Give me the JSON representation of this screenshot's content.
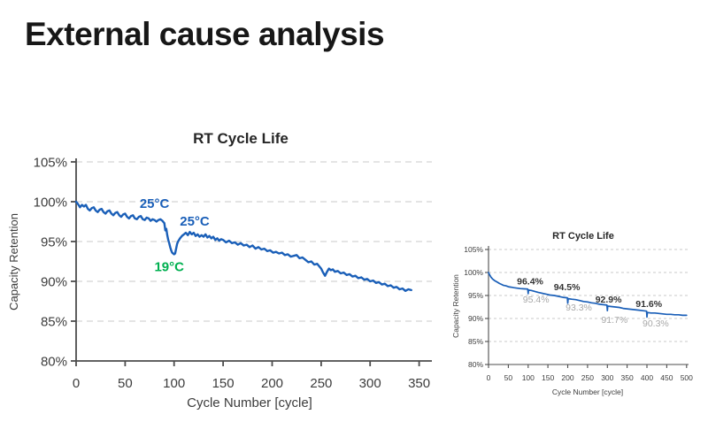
{
  "page": {
    "title": "External cause analysis"
  },
  "colors": {
    "blue": "#1a5fb8",
    "green": "#00b050",
    "dark": "#333333",
    "gray": "#a8a8a8",
    "grid": "#c9c9c9",
    "axis": "#4d4d4d",
    "text": "#3c3c3c",
    "title": "#262626"
  },
  "chart_data": [
    {
      "id": "left",
      "type": "line",
      "title": "RT Cycle Life",
      "xlabel": "Cycle Number [cycle]",
      "ylabel": "Capacity Retention",
      "xlim": [
        0,
        363
      ],
      "ylim": [
        80,
        105
      ],
      "xticks": [
        0,
        50,
        100,
        150,
        200,
        250,
        300,
        350
      ],
      "xtick_labels": [
        "0",
        "50",
        "100",
        "150",
        "200",
        "250",
        "300",
        "350"
      ],
      "yticks": [
        80,
        85,
        90,
        95,
        100,
        105
      ],
      "ytick_labels": [
        "80%",
        "85%",
        "90%",
        "95%",
        "100%",
        "105%"
      ],
      "grid": "dashed-horizontal",
      "legend": "none",
      "series": [
        {
          "name": "capacity-retention",
          "color": "#1a5fb8",
          "points": [
            [
              0,
              100
            ],
            [
              2,
              99.7
            ],
            [
              4,
              99.3
            ],
            [
              6,
              99.6
            ],
            [
              8,
              99.4
            ],
            [
              10,
              99.6
            ],
            [
              12,
              99.1
            ],
            [
              14,
              98.9
            ],
            [
              16,
              99.2
            ],
            [
              18,
              99.3
            ],
            [
              20,
              98.9
            ],
            [
              22,
              98.7
            ],
            [
              24,
              99.0
            ],
            [
              26,
              99.1
            ],
            [
              28,
              98.7
            ],
            [
              30,
              98.5
            ],
            [
              32,
              98.8
            ],
            [
              34,
              98.9
            ],
            [
              36,
              98.5
            ],
            [
              38,
              98.3
            ],
            [
              40,
              98.6
            ],
            [
              42,
              98.7
            ],
            [
              44,
              98.3
            ],
            [
              46,
              98.1
            ],
            [
              48,
              98.4
            ],
            [
              50,
              98.5
            ],
            [
              52,
              98.1
            ],
            [
              54,
              97.9
            ],
            [
              56,
              98.2
            ],
            [
              58,
              98.3
            ],
            [
              60,
              97.9
            ],
            [
              62,
              97.8
            ],
            [
              64,
              98.1
            ],
            [
              66,
              98.2
            ],
            [
              68,
              97.8
            ],
            [
              70,
              97.7
            ],
            [
              72,
              98.0
            ],
            [
              74,
              97.9
            ],
            [
              76,
              97.6
            ],
            [
              78,
              97.8
            ],
            [
              80,
              97.7
            ],
            [
              82,
              97.5
            ],
            [
              84,
              97.7
            ],
            [
              86,
              97.8
            ],
            [
              88,
              97.6
            ],
            [
              90,
              97.3
            ],
            [
              91,
              96.4
            ],
            [
              92,
              96.6
            ],
            [
              93,
              95.8
            ],
            [
              94,
              95.2
            ],
            [
              95,
              94.8
            ],
            [
              96,
              94.3
            ],
            [
              97,
              93.9
            ],
            [
              98,
              93.6
            ],
            [
              100,
              93.4
            ],
            [
              101,
              93.5
            ],
            [
              102,
              94.1
            ],
            [
              103,
              94.7
            ],
            [
              104,
              95.0
            ],
            [
              106,
              95.4
            ],
            [
              108,
              95.7
            ],
            [
              110,
              95.9
            ],
            [
              112,
              96.1
            ],
            [
              114,
              95.8
            ],
            [
              116,
              96.2
            ],
            [
              118,
              95.9
            ],
            [
              120,
              96.1
            ],
            [
              122,
              95.7
            ],
            [
              124,
              95.9
            ],
            [
              126,
              95.6
            ],
            [
              128,
              95.8
            ],
            [
              130,
              95.6
            ],
            [
              132,
              95.9
            ],
            [
              134,
              95.5
            ],
            [
              136,
              95.7
            ],
            [
              138,
              95.4
            ],
            [
              140,
              95.6
            ],
            [
              142,
              95.2
            ],
            [
              144,
              95.4
            ],
            [
              146,
              95.1
            ],
            [
              148,
              95.3
            ],
            [
              150,
              95.2
            ],
            [
              153,
              94.9
            ],
            [
              156,
              95.1
            ],
            [
              159,
              94.8
            ],
            [
              162,
              94.9
            ],
            [
              165,
              94.6
            ],
            [
              168,
              94.8
            ],
            [
              171,
              94.5
            ],
            [
              174,
              94.6
            ],
            [
              177,
              94.3
            ],
            [
              180,
              94.5
            ],
            [
              183,
              94.1
            ],
            [
              186,
              94.3
            ],
            [
              189,
              94.0
            ],
            [
              192,
              94.1
            ],
            [
              195,
              93.8
            ],
            [
              198,
              93.9
            ],
            [
              201,
              93.6
            ],
            [
              204,
              93.7
            ],
            [
              207,
              93.5
            ],
            [
              210,
              93.6
            ],
            [
              213,
              93.3
            ],
            [
              216,
              93.4
            ],
            [
              219,
              93.1
            ],
            [
              222,
              93.2
            ],
            [
              225,
              93.3
            ],
            [
              228,
              92.9
            ],
            [
              231,
              93.0
            ],
            [
              234,
              92.7
            ],
            [
              237,
              92.4
            ],
            [
              240,
              92.5
            ],
            [
              243,
              92.1
            ],
            [
              246,
              92.2
            ],
            [
              248,
              91.9
            ],
            [
              250,
              91.6
            ],
            [
              252,
              91.1
            ],
            [
              254,
              90.7
            ],
            [
              256,
              91.2
            ],
            [
              258,
              91.6
            ],
            [
              260,
              91.4
            ],
            [
              262,
              91.5
            ],
            [
              264,
              91.2
            ],
            [
              267,
              91.3
            ],
            [
              270,
              91.0
            ],
            [
              273,
              91.1
            ],
            [
              276,
              90.8
            ],
            [
              279,
              90.9
            ],
            [
              282,
              90.6
            ],
            [
              285,
              90.7
            ],
            [
              288,
              90.4
            ],
            [
              291,
              90.5
            ],
            [
              294,
              90.2
            ],
            [
              297,
              90.3
            ],
            [
              300,
              90.0
            ],
            [
              303,
              90.1
            ],
            [
              306,
              89.8
            ],
            [
              309,
              89.9
            ],
            [
              312,
              89.6
            ],
            [
              315,
              89.7
            ],
            [
              318,
              89.4
            ],
            [
              321,
              89.5
            ],
            [
              324,
              89.2
            ],
            [
              327,
              89.3
            ],
            [
              330,
              89.0
            ],
            [
              333,
              89.1
            ],
            [
              336,
              88.8
            ],
            [
              339,
              89.0
            ],
            [
              342,
              88.9
            ]
          ]
        }
      ],
      "annotations": [
        {
          "text": "25°C",
          "x": 80,
          "y": 99.2,
          "color": "blue",
          "bold": true
        },
        {
          "text": "25°C",
          "x": 121,
          "y": 97.0,
          "color": "blue",
          "bold": true
        },
        {
          "text": "19°C",
          "x": 95,
          "y": 91.3,
          "color": "green",
          "bold": true
        }
      ]
    },
    {
      "id": "right",
      "type": "line",
      "title": "RT Cycle Life",
      "xlabel": "Cycle Number [cycle]",
      "ylabel": "Capacity Retention",
      "xlim": [
        0,
        505
      ],
      "ylim": [
        80,
        105
      ],
      "xticks": [
        0,
        50,
        100,
        150,
        200,
        250,
        300,
        350,
        400,
        450,
        500
      ],
      "xtick_labels": [
        "0",
        "50",
        "100",
        "150",
        "200",
        "250",
        "300",
        "350",
        "400",
        "450",
        "500"
      ],
      "yticks": [
        80,
        85,
        90,
        95,
        100,
        105
      ],
      "ytick_labels": [
        "80%",
        "85%",
        "90%",
        "95%",
        "100%",
        "105%"
      ],
      "grid": "dashed-horizontal",
      "legend": "none",
      "series": [
        {
          "name": "capacity-retention",
          "color": "#1a5fb8",
          "points": [
            [
              0,
              100
            ],
            [
              2,
              99.6
            ],
            [
              4,
              99.3
            ],
            [
              6,
              99.0
            ],
            [
              8,
              98.8
            ],
            [
              10,
              98.6
            ],
            [
              13,
              98.4
            ],
            [
              16,
              98.2
            ],
            [
              20,
              98.0
            ],
            [
              24,
              97.8
            ],
            [
              28,
              97.6
            ],
            [
              33,
              97.4
            ],
            [
              38,
              97.2
            ],
            [
              44,
              97.1
            ],
            [
              50,
              96.9
            ],
            [
              57,
              96.8
            ],
            [
              64,
              96.7
            ],
            [
              72,
              96.6
            ],
            [
              80,
              96.5
            ],
            [
              90,
              96.45
            ],
            [
              99,
              96.4
            ],
            [
              100,
              95.4
            ],
            [
              101,
              96.2
            ],
            [
              108,
              96.1
            ],
            [
              116,
              95.9
            ],
            [
              125,
              95.7
            ],
            [
              135,
              95.5
            ],
            [
              145,
              95.3
            ],
            [
              155,
              95.1
            ],
            [
              166,
              95.0
            ],
            [
              177,
              94.8
            ],
            [
              188,
              94.6
            ],
            [
              199,
              94.5
            ],
            [
              200,
              93.3
            ],
            [
              201,
              94.3
            ],
            [
              210,
              94.2
            ],
            [
              220,
              94.1
            ],
            [
              230,
              93.9
            ],
            [
              240,
              93.7
            ],
            [
              250,
              93.6
            ],
            [
              260,
              93.4
            ],
            [
              270,
              93.3
            ],
            [
              280,
              93.1
            ],
            [
              290,
              93.0
            ],
            [
              299,
              92.9
            ],
            [
              300,
              91.7
            ],
            [
              301,
              92.7
            ],
            [
              310,
              92.6
            ],
            [
              320,
              92.5
            ],
            [
              330,
              92.4
            ],
            [
              340,
              92.2
            ],
            [
              350,
              92.1
            ],
            [
              360,
              92.0
            ],
            [
              370,
              91.9
            ],
            [
              380,
              91.8
            ],
            [
              390,
              91.7
            ],
            [
              399,
              91.6
            ],
            [
              400,
              90.3
            ],
            [
              401,
              91.3
            ],
            [
              410,
              91.2
            ],
            [
              420,
              91.2
            ],
            [
              430,
              91.1
            ],
            [
              440,
              91.0
            ],
            [
              450,
              90.9
            ],
            [
              460,
              90.9
            ],
            [
              470,
              90.8
            ],
            [
              480,
              90.8
            ],
            [
              490,
              90.7
            ],
            [
              500,
              90.7
            ]
          ]
        }
      ],
      "annotations": [
        {
          "text": "96.4%",
          "x": 105,
          "y": 97.4,
          "color": "dark",
          "bold": true
        },
        {
          "text": "95.4%",
          "x": 120,
          "y": 93.5,
          "color": "gray",
          "bold": false
        },
        {
          "text": "94.5%",
          "x": 198,
          "y": 96.2,
          "color": "dark",
          "bold": true
        },
        {
          "text": "93.3%",
          "x": 228,
          "y": 91.7,
          "color": "gray",
          "bold": false
        },
        {
          "text": "92.9%",
          "x": 303,
          "y": 93.5,
          "color": "dark",
          "bold": true
        },
        {
          "text": "91.7%",
          "x": 318,
          "y": 89.0,
          "color": "gray",
          "bold": false
        },
        {
          "text": "91.6%",
          "x": 405,
          "y": 92.5,
          "color": "dark",
          "bold": true
        },
        {
          "text": "90.3%",
          "x": 422,
          "y": 88.3,
          "color": "gray",
          "bold": false
        }
      ]
    }
  ]
}
